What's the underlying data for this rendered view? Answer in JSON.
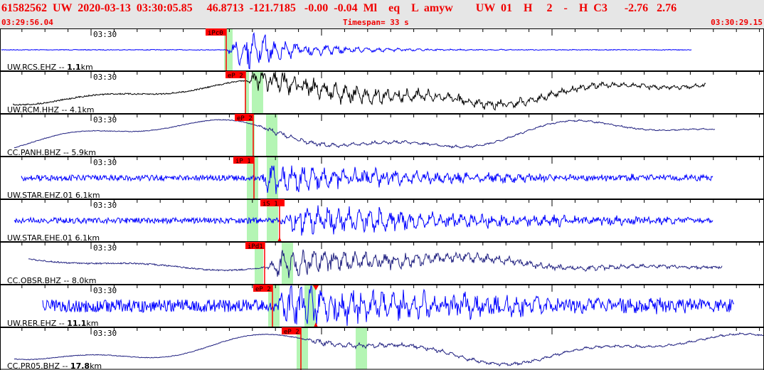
{
  "header": {
    "title": "61582562  UW  2020-03-13  03:30:05.85     46.8713  -121.7185   -0.00  -0.04  Ml    eq    L  amyw        UW  01    H     2    -    H  C3      -2.76   2.76",
    "start_time": "03:29:56.04",
    "timespan": "Timespan=  33 s",
    "end_time": "03:30:29.15"
  },
  "axis_label": "03:30",
  "colors": {
    "header_text": "#f00000",
    "pick": "#ff0000",
    "window": "#b4f5b4",
    "blue": "#0000ff",
    "black": "#000000",
    "navy": "#202080"
  },
  "channels": [
    {
      "label": "UW.RCS.EHZ -- ",
      "dist": "1.1",
      "unit": "km",
      "bold": true,
      "color": "blue",
      "pick": "iPc0"
    },
    {
      "label": "UW.RCM.HHZ -- ",
      "dist": "4.1",
      "unit": "km",
      "bold": false,
      "color": "black",
      "pick": "eP 2"
    },
    {
      "label": "CC.PANH.BHZ -- ",
      "dist": "5.9",
      "unit": "km",
      "bold": false,
      "color": "navy",
      "pick": "eP 2"
    },
    {
      "label": "UW.STAR.EHZ.01 ",
      "dist": "6.1",
      "unit": "km",
      "bold": false,
      "color": "blue",
      "pick": "iP 1"
    },
    {
      "label": "UW.STAR.EHE.01 ",
      "dist": "6.1",
      "unit": "km",
      "bold": false,
      "color": "blue",
      "pick": "iS 1"
    },
    {
      "label": "CC.OBSR.BHZ -- ",
      "dist": "8.0",
      "unit": "km",
      "bold": false,
      "color": "navy",
      "pick": "iPd1"
    },
    {
      "label": "UW.RER.EHZ -- ",
      "dist": "11.1",
      "unit": "km",
      "bold": true,
      "color": "blue",
      "pick": "eP 2"
    },
    {
      "label": "CC.PR05.BHZ -- ",
      "dist": "17.8",
      "unit": "km",
      "bold": true,
      "color": "navy",
      "pick": "eP 2"
    }
  ]
}
